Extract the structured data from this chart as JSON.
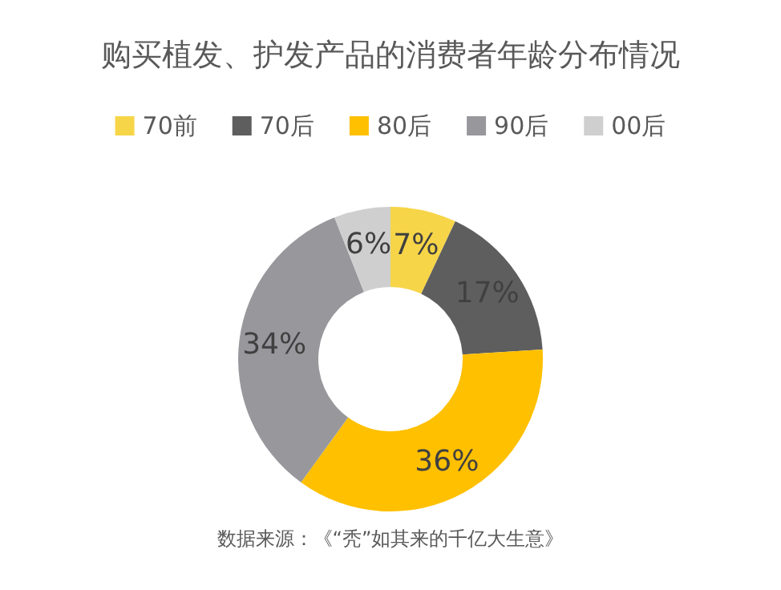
{
  "chart_data": {
    "type": "donut",
    "title": "购买植发、护发产品的消费者年龄分布情况",
    "categories": [
      "70前",
      "70后",
      "80后",
      "90后",
      "00后"
    ],
    "values": [
      7,
      17,
      36,
      34,
      6
    ],
    "colors": [
      "#f7d548",
      "#5e5e5e",
      "#ffc000",
      "#98979c",
      "#cfcfcf"
    ],
    "value_labels": [
      "7%",
      "17%",
      "36%",
      "34%",
      "6%"
    ],
    "legend": "top",
    "annotations": [
      "数据来源：《“秃”如其来的千亿大生意》"
    ]
  }
}
